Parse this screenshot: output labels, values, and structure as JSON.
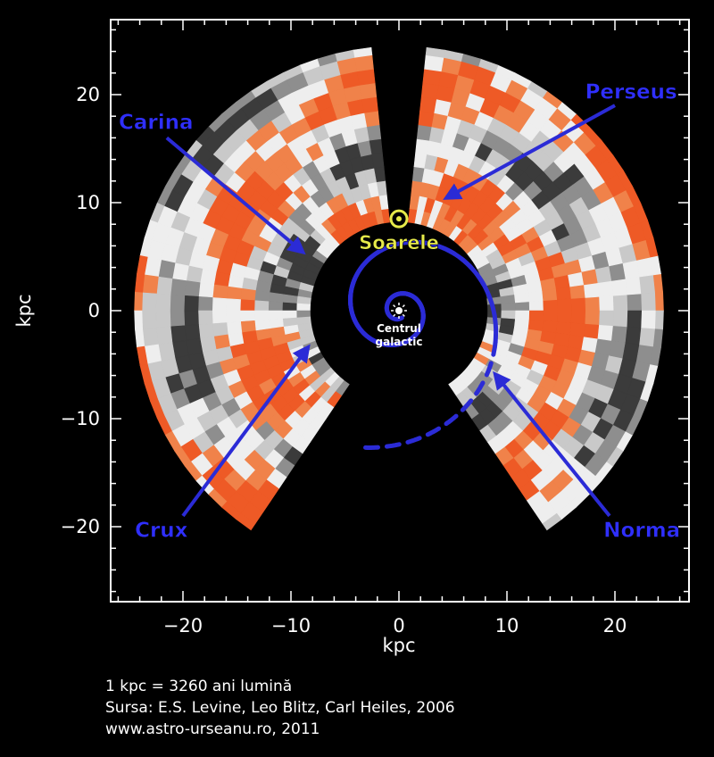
{
  "chart_data": {
    "type": "map",
    "xlabel": "kpc",
    "ylabel": "kpc",
    "xlim": [
      -26.5,
      26.5
    ],
    "ylim": [
      -27,
      26.5
    ],
    "xticks": [
      -20,
      -10,
      0,
      10,
      20
    ],
    "yticks": [
      -20,
      -10,
      0,
      10,
      20
    ],
    "xtick_labels": [
      "−20",
      "−10",
      "0",
      "10",
      "20"
    ],
    "ytick_labels": [
      "−20",
      "−10",
      "0",
      "10",
      "20"
    ],
    "sun": {
      "x": 0,
      "y": 8.5,
      "label": "Soarele"
    },
    "galactic_center": {
      "x": 0,
      "y": 0,
      "label_line1": "Centrul",
      "label_line2": "galactic"
    },
    "arms": [
      {
        "name": "Perseus",
        "label_at": [
          21.5,
          20.3
        ],
        "arrow_from": [
          20,
          19
        ],
        "arrow_to": [
          4.5,
          10.5
        ]
      },
      {
        "name": "Carina",
        "label_at": [
          -22.5,
          17.5
        ],
        "arrow_from": [
          -21.5,
          16
        ],
        "arrow_to": [
          -9,
          5.5
        ]
      },
      {
        "name": "Crux",
        "label_at": [
          -22,
          -20.3
        ],
        "arrow_from": [
          -20,
          -19
        ],
        "arrow_to": [
          -8.5,
          -3.5
        ]
      },
      {
        "name": "Norma",
        "label_at": [
          22.5,
          -20.3
        ],
        "arrow_from": [
          19.5,
          -19
        ],
        "arrow_to": [
          9,
          -6
        ]
      }
    ],
    "data_region": {
      "outer_radius_kpc": 24.5,
      "inner_radius_kpc": 8.2,
      "masked_cones": [
        "sun-to-anticenter",
        "toward-lower-center"
      ]
    },
    "colors": {
      "background": "#000000",
      "arm_line": "#2b2bd6",
      "overdensity": "#ee5a26",
      "overdensity_light": "#f0824a",
      "underdensity_light": "#eeeeee",
      "underdensity_dark": "#3b3b3b",
      "contour": "#000000",
      "sun": "#e6ea4a",
      "frame": "#ffffff"
    },
    "grid": false
  },
  "credits": {
    "line1": "1 kpc = 3260 ani lumină",
    "line2": "Sursa: E.S. Levine, Leo Blitz, Carl Heiles, 2006",
    "line3": "www.astro-urseanu.ro, 2011"
  }
}
